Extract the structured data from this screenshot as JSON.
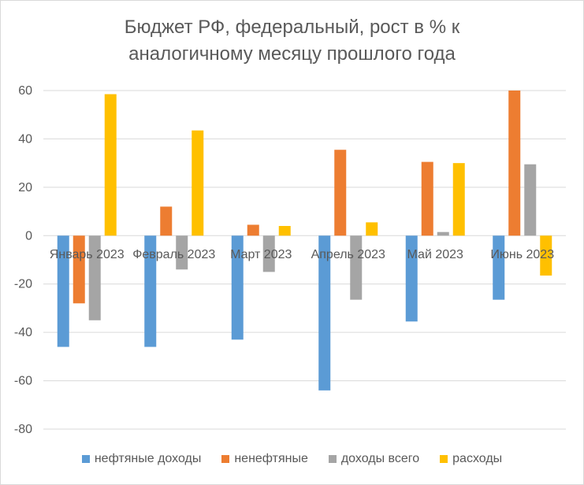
{
  "chart_data": {
    "type": "bar",
    "title_lines": [
      "Бюджет РФ, федеральный, рост в % к",
      "аналогичному месяцу прошлого года"
    ],
    "categories": [
      "Январь 2023",
      "Февраль 2023",
      "Март 2023",
      "Апрель 2023",
      "Май 2023",
      "Июнь 2023"
    ],
    "series": [
      {
        "name": "нефтяные доходы",
        "color": "#5b9bd5",
        "values": [
          -46,
          -46,
          -43,
          -64,
          -35.5,
          -26.5
        ]
      },
      {
        "name": "ненефтяные",
        "color": "#ed7d31",
        "values": [
          -28,
          12,
          4.5,
          35.5,
          30.5,
          60
        ]
      },
      {
        "name": "доходы всего",
        "color": "#a5a5a5",
        "values": [
          -35,
          -14,
          -15,
          -26.5,
          1.5,
          29.5
        ]
      },
      {
        "name": "расходы",
        "color": "#ffc000",
        "values": [
          58.5,
          43.5,
          4,
          5.5,
          30,
          -16.5
        ]
      }
    ],
    "ylim": [
      -80,
      60
    ],
    "yticks": [
      60,
      40,
      20,
      0,
      -20,
      -40,
      -60,
      -80
    ],
    "ytick_labels": [
      "60",
      "40",
      "20",
      "0",
      "-20",
      "-40",
      "-60",
      "-80"
    ],
    "grid": true,
    "legend": "bottom"
  }
}
